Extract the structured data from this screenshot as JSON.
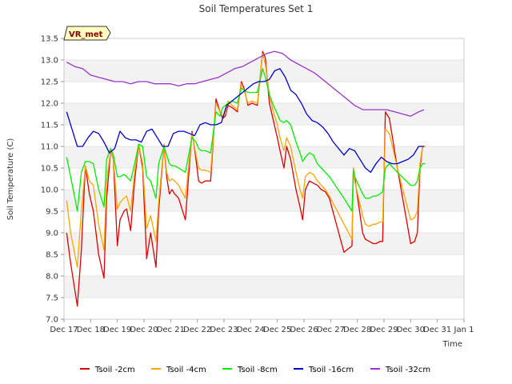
{
  "chart_data": {
    "type": "line",
    "title": "Soil Temperatures Set 1",
    "xlabel": "Time",
    "ylabel": "Soil Temperature (C)",
    "ylim": [
      7.0,
      13.5
    ],
    "xlim": [
      0,
      15
    ],
    "y_ticks": [
      7.0,
      7.5,
      8.0,
      8.5,
      9.0,
      9.5,
      10.0,
      10.5,
      11.0,
      11.5,
      12.0,
      12.5,
      13.0,
      13.5
    ],
    "y_tick_labels": [
      "7.0",
      "7.5",
      "8.0",
      "8.5",
      "9.0",
      "9.5",
      "10.0",
      "10.5",
      "11.0",
      "11.5",
      "12.0",
      "12.5",
      "13.0",
      "13.5"
    ],
    "x_ticks": [
      0,
      1,
      2,
      3,
      4,
      5,
      6,
      7,
      8,
      9,
      10,
      11,
      12,
      13,
      14,
      15
    ],
    "x_tick_labels": [
      "Dec 17",
      "Dec 18",
      "Dec 19",
      "Dec 20",
      "Dec 21",
      "Dec 22",
      "Dec 23",
      "Dec 24",
      "Dec 25",
      "Dec 26",
      "Dec 27",
      "Dec 28",
      "Dec 29",
      "Dec 30",
      "Dec 31",
      "Jan 1"
    ],
    "grid": "horizontal bands",
    "legend_position": "bottom",
    "annotation": "VR_met",
    "series": [
      {
        "name": "Tsoil -2cm",
        "color": "#dd0000",
        "x": [
          0.1,
          0.25,
          0.5,
          0.65,
          0.8,
          0.95,
          1.1,
          1.3,
          1.5,
          1.6,
          1.75,
          1.85,
          2.0,
          2.1,
          2.25,
          2.35,
          2.5,
          2.65,
          2.8,
          2.95,
          3.1,
          3.25,
          3.45,
          3.55,
          3.75,
          3.85,
          3.95,
          4.05,
          4.15,
          4.3,
          4.55,
          4.8,
          4.95,
          5.05,
          5.15,
          5.3,
          5.5,
          5.7,
          5.85,
          5.95,
          6.05,
          6.15,
          6.3,
          6.5,
          6.65,
          6.75,
          6.9,
          7.05,
          7.25,
          7.45,
          7.55,
          7.7,
          7.85,
          8.0,
          8.1,
          8.25,
          8.35,
          8.5,
          8.7,
          8.85,
          8.95,
          9.05,
          9.2,
          9.35,
          9.5,
          9.65,
          9.8,
          9.95,
          10.5,
          10.8,
          10.85,
          10.9,
          11.2,
          11.3,
          11.45,
          11.6,
          11.7,
          11.85,
          11.95,
          12.05,
          12.2,
          12.5,
          13.0,
          13.15,
          13.25,
          13.35,
          13.45,
          13.55
        ],
        "y": [
          9.0,
          8.3,
          7.3,
          8.6,
          10.55,
          9.9,
          9.5,
          8.5,
          7.95,
          9.8,
          10.9,
          10.7,
          8.7,
          9.3,
          9.5,
          9.55,
          9.05,
          10.2,
          11.05,
          10.5,
          8.4,
          9.0,
          8.2,
          9.5,
          11.05,
          10.3,
          9.9,
          10.0,
          9.9,
          9.8,
          9.3,
          11.35,
          10.7,
          10.2,
          10.15,
          10.2,
          10.2,
          12.1,
          11.8,
          11.65,
          11.7,
          11.95,
          11.9,
          11.8,
          12.5,
          12.35,
          11.95,
          12.0,
          11.95,
          13.2,
          13.05,
          12.0,
          11.6,
          11.2,
          10.9,
          10.5,
          11.0,
          10.7,
          10.0,
          9.6,
          9.3,
          10.0,
          10.2,
          10.15,
          10.1,
          10.0,
          9.95,
          9.8,
          8.55,
          8.7,
          10.5,
          10.3,
          9.0,
          8.85,
          8.8,
          8.75,
          8.75,
          8.8,
          8.8,
          11.8,
          11.65,
          10.5,
          8.75,
          8.8,
          9.0,
          10.5,
          11.0,
          11.0
        ]
      },
      {
        "name": "Tsoil -4cm",
        "color": "#ffa500",
        "x": [
          0.1,
          0.25,
          0.5,
          0.65,
          0.8,
          0.95,
          1.1,
          1.3,
          1.5,
          1.6,
          1.75,
          1.85,
          2.0,
          2.1,
          2.25,
          2.35,
          2.5,
          2.65,
          2.8,
          2.95,
          3.1,
          3.25,
          3.45,
          3.55,
          3.75,
          3.85,
          3.95,
          4.05,
          4.15,
          4.3,
          4.55,
          4.8,
          4.95,
          5.05,
          5.15,
          5.3,
          5.5,
          5.7,
          5.85,
          5.95,
          6.05,
          6.15,
          6.3,
          6.5,
          6.65,
          6.75,
          6.9,
          7.05,
          7.25,
          7.45,
          7.55,
          7.7,
          7.85,
          8.0,
          8.1,
          8.25,
          8.35,
          8.5,
          8.7,
          8.85,
          8.95,
          9.05,
          9.2,
          9.35,
          9.5,
          9.65,
          9.8,
          9.95,
          10.5,
          10.8,
          10.85,
          10.9,
          11.2,
          11.3,
          11.45,
          11.6,
          11.7,
          11.85,
          11.95,
          12.05,
          12.2,
          12.5,
          13.0,
          13.15,
          13.25,
          13.35,
          13.45,
          13.55
        ],
        "y": [
          9.75,
          9.0,
          8.2,
          9.5,
          10.55,
          10.2,
          10.1,
          9.2,
          8.6,
          10.2,
          10.9,
          10.7,
          9.55,
          9.7,
          9.8,
          9.85,
          9.5,
          10.4,
          11.05,
          10.6,
          9.1,
          9.4,
          8.8,
          9.7,
          11.05,
          10.4,
          10.2,
          10.25,
          10.2,
          10.1,
          9.8,
          11.3,
          10.8,
          10.5,
          10.45,
          10.45,
          10.4,
          12.0,
          11.8,
          11.7,
          11.75,
          12.05,
          11.95,
          11.85,
          12.45,
          12.3,
          12.0,
          12.05,
          12.0,
          13.15,
          12.9,
          12.2,
          11.8,
          11.5,
          11.2,
          10.9,
          11.2,
          11.0,
          10.4,
          10.0,
          9.8,
          10.3,
          10.4,
          10.35,
          10.2,
          10.1,
          10.0,
          9.85,
          9.2,
          8.85,
          10.5,
          10.2,
          9.4,
          9.2,
          9.15,
          9.2,
          9.2,
          9.25,
          9.25,
          11.4,
          11.3,
          10.5,
          9.3,
          9.35,
          9.5,
          10.6,
          11.0,
          11.0
        ]
      },
      {
        "name": "Tsoil -8cm",
        "color": "#00ee00",
        "x": [
          0.1,
          0.25,
          0.5,
          0.65,
          0.8,
          0.95,
          1.1,
          1.3,
          1.5,
          1.6,
          1.75,
          1.85,
          2.0,
          2.1,
          2.25,
          2.35,
          2.5,
          2.65,
          2.8,
          2.95,
          3.1,
          3.25,
          3.45,
          3.55,
          3.75,
          3.85,
          3.95,
          4.05,
          4.15,
          4.3,
          4.55,
          4.8,
          4.95,
          5.05,
          5.15,
          5.3,
          5.5,
          5.7,
          5.85,
          5.95,
          6.05,
          6.15,
          6.3,
          6.5,
          6.65,
          6.75,
          6.9,
          7.05,
          7.25,
          7.45,
          7.55,
          7.7,
          7.85,
          8.0,
          8.1,
          8.25,
          8.35,
          8.5,
          8.7,
          8.85,
          8.95,
          9.05,
          9.2,
          9.35,
          9.5,
          9.65,
          9.8,
          9.95,
          10.5,
          10.8,
          10.85,
          10.9,
          11.2,
          11.3,
          11.45,
          11.6,
          11.7,
          11.85,
          11.95,
          12.05,
          12.2,
          12.5,
          13.0,
          13.15,
          13.25,
          13.35,
          13.45,
          13.55
        ],
        "y": [
          10.75,
          10.3,
          9.5,
          10.4,
          10.65,
          10.65,
          10.6,
          10.0,
          9.6,
          10.7,
          10.95,
          10.8,
          10.3,
          10.3,
          10.35,
          10.3,
          10.2,
          10.6,
          11.05,
          11.0,
          10.3,
          10.2,
          9.8,
          10.6,
          11.0,
          10.8,
          10.6,
          10.55,
          10.55,
          10.5,
          10.4,
          11.2,
          11.1,
          10.95,
          10.9,
          10.9,
          10.85,
          11.8,
          11.7,
          11.9,
          11.95,
          12.0,
          12.05,
          12.0,
          12.35,
          12.3,
          12.25,
          12.25,
          12.25,
          12.8,
          12.6,
          12.2,
          11.95,
          11.75,
          11.6,
          11.55,
          11.6,
          11.5,
          11.1,
          10.85,
          10.65,
          10.75,
          10.85,
          10.8,
          10.6,
          10.5,
          10.4,
          10.3,
          9.8,
          9.5,
          10.45,
          10.3,
          9.9,
          9.8,
          9.8,
          9.85,
          9.85,
          9.9,
          9.95,
          10.5,
          10.6,
          10.4,
          10.1,
          10.1,
          10.2,
          10.5,
          10.6,
          10.6
        ]
      },
      {
        "name": "Tsoil -16cm",
        "color": "#0000cc",
        "x": [
          0.1,
          0.3,
          0.5,
          0.7,
          0.9,
          1.1,
          1.3,
          1.5,
          1.7,
          1.9,
          2.1,
          2.3,
          2.5,
          2.7,
          2.9,
          3.1,
          3.3,
          3.5,
          3.7,
          3.9,
          4.1,
          4.3,
          4.5,
          4.7,
          4.9,
          5.1,
          5.3,
          5.5,
          5.7,
          5.9,
          6.1,
          6.3,
          6.5,
          6.7,
          6.9,
          7.1,
          7.3,
          7.5,
          7.7,
          7.9,
          8.1,
          8.3,
          8.5,
          8.7,
          8.9,
          9.1,
          9.3,
          9.5,
          9.7,
          9.9,
          10.1,
          10.3,
          10.5,
          10.7,
          10.9,
          11.1,
          11.3,
          11.5,
          11.7,
          11.9,
          12.1,
          12.3,
          12.5,
          12.7,
          12.9,
          13.1,
          13.3,
          13.5
        ],
        "y": [
          11.8,
          11.4,
          11.0,
          11.0,
          11.2,
          11.35,
          11.3,
          11.1,
          10.85,
          10.95,
          11.35,
          11.2,
          11.15,
          11.15,
          11.1,
          11.35,
          11.4,
          11.2,
          11.0,
          11.0,
          11.3,
          11.35,
          11.35,
          11.3,
          11.25,
          11.5,
          11.55,
          11.5,
          11.5,
          11.55,
          11.95,
          12.05,
          12.15,
          12.25,
          12.35,
          12.45,
          12.5,
          12.5,
          12.55,
          12.75,
          12.8,
          12.6,
          12.3,
          12.2,
          12.0,
          11.75,
          11.6,
          11.55,
          11.45,
          11.3,
          11.1,
          10.95,
          10.8,
          10.95,
          10.9,
          10.7,
          10.5,
          10.4,
          10.6,
          10.75,
          10.65,
          10.6,
          10.6,
          10.65,
          10.7,
          10.8,
          11.0,
          11.0
        ]
      },
      {
        "name": "Tsoil -32cm",
        "color": "#9932cc",
        "x": [
          0.1,
          0.4,
          0.7,
          1.0,
          1.3,
          1.6,
          1.9,
          2.2,
          2.5,
          2.8,
          3.1,
          3.4,
          3.7,
          4.0,
          4.3,
          4.6,
          4.9,
          5.2,
          5.5,
          5.8,
          6.1,
          6.4,
          6.7,
          7.0,
          7.3,
          7.6,
          7.9,
          8.2,
          8.5,
          8.8,
          9.1,
          9.4,
          9.7,
          10.0,
          10.3,
          10.6,
          10.9,
          11.2,
          11.5,
          11.8,
          12.1,
          12.4,
          12.7,
          13.0,
          13.3,
          13.5
        ],
        "y": [
          12.95,
          12.85,
          12.8,
          12.65,
          12.6,
          12.55,
          12.5,
          12.5,
          12.45,
          12.5,
          12.5,
          12.45,
          12.45,
          12.45,
          12.4,
          12.45,
          12.45,
          12.5,
          12.55,
          12.6,
          12.7,
          12.8,
          12.85,
          12.95,
          13.05,
          13.15,
          13.2,
          13.15,
          13.0,
          12.9,
          12.8,
          12.7,
          12.55,
          12.4,
          12.25,
          12.1,
          11.95,
          11.85,
          11.85,
          11.85,
          11.85,
          11.8,
          11.75,
          11.7,
          11.8,
          11.85
        ]
      }
    ]
  }
}
